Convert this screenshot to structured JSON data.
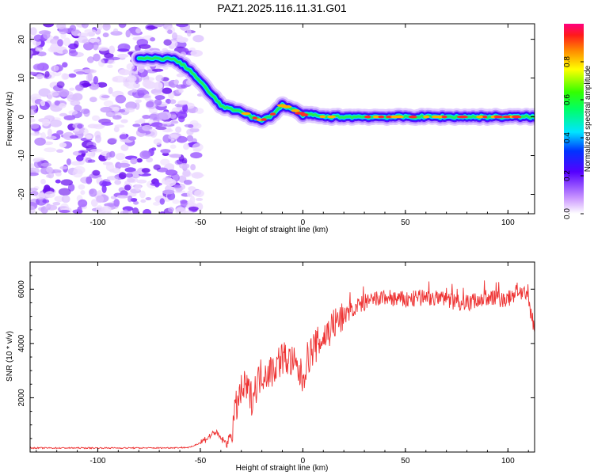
{
  "chart_data": [
    {
      "type": "heatmap",
      "title": "PAZ1.2025.116.11.31.G01",
      "xlabel": "Height of straight line (km)",
      "ylabel": "Frequency (Hz)",
      "xlim": [
        -133,
        113
      ],
      "ylim": [
        -25,
        24
      ],
      "xticks": [
        -100,
        -50,
        0,
        50,
        100
      ],
      "yticks": [
        -20,
        -10,
        0,
        10,
        20
      ],
      "colorbar": {
        "label": "Normalized spectral amplitude",
        "range": [
          0,
          1
        ],
        "ticks": [
          0.0,
          0.2,
          0.4,
          0.6,
          0.8
        ],
        "colormap": "rainbow (white-violet-blue-cyan-green-yellow-red-magenta)"
      },
      "noise_region_x": [
        -133,
        -50
      ],
      "ridge": {
        "description": "peak frequency ridge",
        "x": [
          -80,
          -70,
          -64,
          -60,
          -55,
          -50,
          -45,
          -40,
          -36,
          -30,
          -25,
          -20,
          -15,
          -10,
          -5,
          0,
          5,
          10,
          20,
          30,
          40,
          50,
          60,
          70,
          80,
          90,
          100,
          113
        ],
        "y": [
          15,
          15,
          15,
          14,
          12,
          9,
          6,
          3,
          2,
          1.5,
          0,
          -1,
          0.5,
          3,
          2,
          0.5,
          0.5,
          0,
          0,
          0,
          0,
          0,
          0,
          0,
          0,
          0,
          0,
          0
        ]
      }
    },
    {
      "type": "line",
      "xlabel": "Height of straight line (km)",
      "ylabel": "SNR (10 * v/v)",
      "xlim": [
        -133,
        113
      ],
      "ylim": [
        0,
        7000
      ],
      "xticks": [
        -100,
        -50,
        0,
        50,
        100
      ],
      "yticks": [
        2000,
        4000,
        6000
      ],
      "color": "#ee3333",
      "series": [
        {
          "x": [
            -133,
            -100,
            -70,
            -55,
            -50,
            -45,
            -43,
            -40,
            -37,
            -35,
            -32,
            -30,
            -28,
            -25,
            -22,
            -20,
            -15,
            -10,
            -5,
            0,
            2,
            5,
            10,
            15,
            20,
            25,
            30,
            40,
            50,
            60,
            70,
            80,
            90,
            100,
            105,
            110,
            113
          ],
          "y": [
            150,
            150,
            150,
            170,
            350,
            600,
            750,
            500,
            300,
            700,
            1800,
            2200,
            2400,
            2000,
            2600,
            2900,
            3000,
            3500,
            3300,
            2700,
            3400,
            3800,
            4200,
            4700,
            5000,
            5300,
            5500,
            5700,
            5600,
            5700,
            5600,
            5500,
            5700,
            5600,
            6000,
            5600,
            4500
          ]
        }
      ]
    }
  ]
}
